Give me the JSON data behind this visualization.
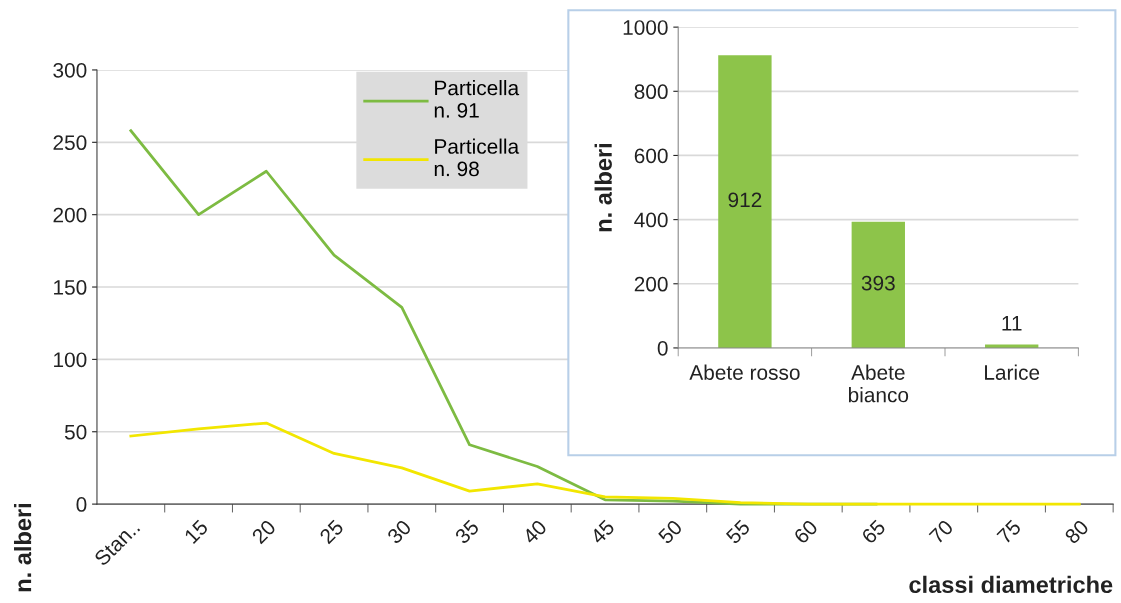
{
  "chart_data": [
    {
      "type": "line",
      "xlabel": "classi diametriche",
      "ylabel": "n. alberi",
      "categories": [
        "Stan..",
        "15",
        "20",
        "25",
        "30",
        "35",
        "40",
        "45",
        "50",
        "55",
        "60",
        "65",
        "70",
        "75",
        "80"
      ],
      "series": [
        {
          "name": "Particella\nn. 91",
          "color": "#7dbb42",
          "values": [
            258,
            200,
            230,
            172,
            136,
            41,
            26,
            3,
            2,
            0,
            0,
            0,
            null,
            null,
            null
          ]
        },
        {
          "name": "Particella\nn. 98",
          "color": "#f2e600",
          "values": [
            47,
            52,
            56,
            35,
            25,
            9,
            14,
            5,
            4,
            1,
            0,
            0,
            0,
            0,
            0
          ]
        }
      ],
      "ylim": [
        0,
        300
      ],
      "yticks": [
        0,
        50,
        100,
        150,
        200,
        250,
        300
      ],
      "grid": "y",
      "legend": "top",
      "marker": "none",
      "line_style": "solid"
    },
    {
      "type": "bar",
      "ylabel": "n. alberi",
      "categories": [
        "Abete rosso",
        "Abete\nbianco",
        "Larice"
      ],
      "values": [
        912,
        393,
        11
      ],
      "color": "#8dc44a",
      "ylim": [
        0,
        1000
      ],
      "yticks": [
        0,
        200,
        400,
        600,
        800,
        1000
      ],
      "grid": "y",
      "data_labels": true
    }
  ]
}
